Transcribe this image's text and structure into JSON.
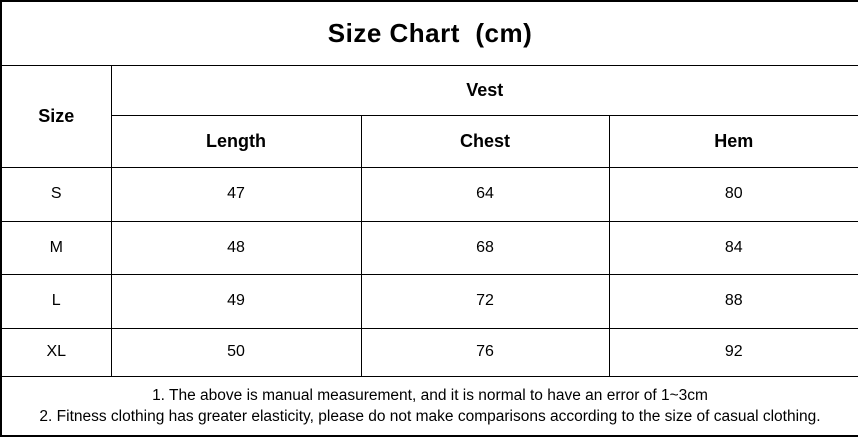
{
  "title": "Size Chart  (cm)",
  "table": {
    "corner_header": "Size",
    "group_header": "Vest",
    "columns": [
      "Length",
      "Chest",
      "Hem"
    ],
    "rows": [
      {
        "size": "S",
        "length": "47",
        "chest": "64",
        "hem": "80"
      },
      {
        "size": "M",
        "length": "48",
        "chest": "68",
        "hem": "84"
      },
      {
        "size": "L",
        "length": "49",
        "chest": "72",
        "hem": "88"
      },
      {
        "size": "XL",
        "length": "50",
        "chest": "76",
        "hem": "92"
      }
    ]
  },
  "notes": [
    "1. The above is manual measurement, and it is normal to have an error of 1~3cm",
    "2. Fitness clothing has greater elasticity, please do not make comparisons according to the size of casual clothing."
  ],
  "colors": {
    "border": "#000000",
    "background": "#ffffff",
    "text": "#000000"
  }
}
